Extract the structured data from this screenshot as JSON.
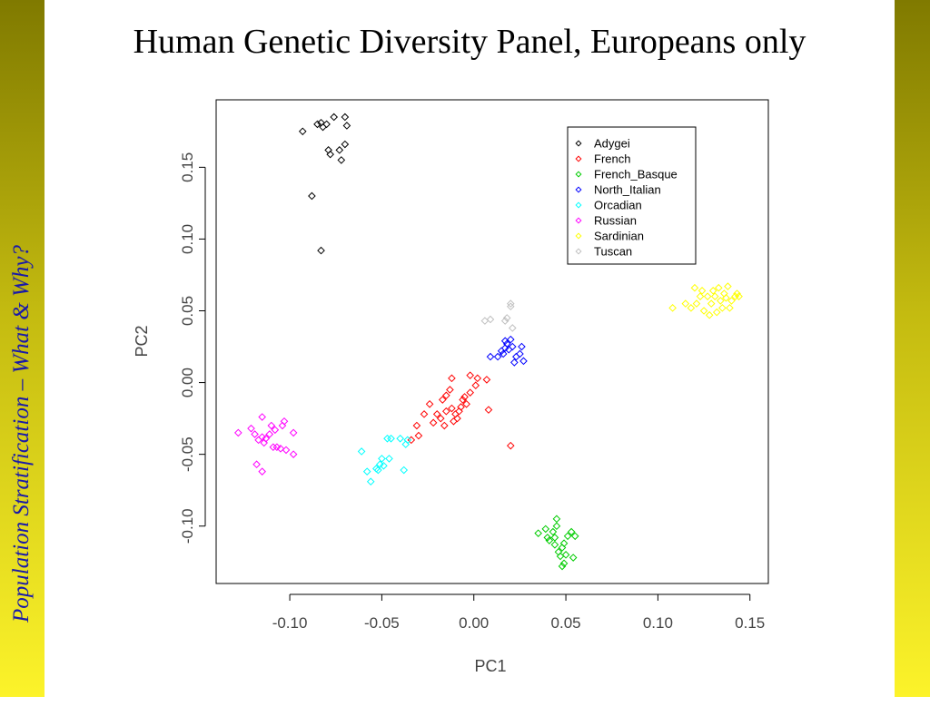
{
  "slide": {
    "title": "Human Genetic Diversity Panel, Europeans only",
    "side_caption": "Population Stratification – What & Why?"
  },
  "chart_data": {
    "type": "scatter",
    "title": "",
    "xlabel": "PC1",
    "ylabel": "PC2",
    "xlim": [
      -0.14,
      0.16
    ],
    "ylim": [
      -0.14,
      0.197
    ],
    "xticks": [
      -0.1,
      -0.05,
      0.0,
      0.05,
      0.1,
      0.15
    ],
    "xtick_labels": [
      "-0.10",
      "-0.05",
      "0.00",
      "0.05",
      "0.10",
      "0.15"
    ],
    "yticks": [
      -0.1,
      -0.05,
      0.0,
      0.05,
      0.1,
      0.15
    ],
    "ytick_labels": [
      "-0.10",
      "-0.05",
      "0.00",
      "0.05",
      "0.10",
      "0.15"
    ],
    "marker": "diamond",
    "grid": false,
    "legend_position": "top-right",
    "series": [
      {
        "name": "Adygei",
        "color": "#000000",
        "points": [
          [
            -0.093,
            0.175
          ],
          [
            -0.085,
            0.18
          ],
          [
            -0.083,
            0.181
          ],
          [
            -0.082,
            0.178
          ],
          [
            -0.08,
            0.18
          ],
          [
            -0.076,
            0.185
          ],
          [
            -0.07,
            0.185
          ],
          [
            -0.069,
            0.179
          ],
          [
            -0.079,
            0.162
          ],
          [
            -0.078,
            0.159
          ],
          [
            -0.073,
            0.162
          ],
          [
            -0.07,
            0.166
          ],
          [
            -0.072,
            0.155
          ],
          [
            -0.088,
            0.13
          ],
          [
            -0.083,
            0.092
          ]
        ]
      },
      {
        "name": "French",
        "color": "#ff0000",
        "points": [
          [
            -0.034,
            -0.04
          ],
          [
            -0.03,
            -0.037
          ],
          [
            -0.031,
            -0.03
          ],
          [
            -0.027,
            -0.022
          ],
          [
            -0.024,
            -0.015
          ],
          [
            -0.022,
            -0.028
          ],
          [
            -0.02,
            -0.022
          ],
          [
            -0.018,
            -0.025
          ],
          [
            -0.016,
            -0.03
          ],
          [
            -0.015,
            -0.02
          ],
          [
            -0.017,
            -0.012
          ],
          [
            -0.015,
            -0.009
          ],
          [
            -0.013,
            -0.005
          ],
          [
            -0.012,
            -0.018
          ],
          [
            -0.011,
            -0.027
          ],
          [
            -0.01,
            -0.022
          ],
          [
            -0.008,
            -0.02
          ],
          [
            -0.007,
            -0.017
          ],
          [
            -0.006,
            -0.012
          ],
          [
            -0.005,
            -0.01
          ],
          [
            -0.004,
            -0.015
          ],
          [
            -0.012,
            0.003
          ],
          [
            -0.002,
            -0.007
          ],
          [
            -0.002,
            0.005
          ],
          [
            0.001,
            -0.002
          ],
          [
            0.002,
            0.003
          ],
          [
            0.007,
            0.002
          ],
          [
            0.008,
            -0.019
          ],
          [
            0.02,
            -0.044
          ],
          [
            -0.009,
            -0.025
          ]
        ]
      },
      {
        "name": "French_Basque",
        "color": "#00cc00",
        "points": [
          [
            0.035,
            -0.105
          ],
          [
            0.039,
            -0.102
          ],
          [
            0.04,
            -0.108
          ],
          [
            0.041,
            -0.11
          ],
          [
            0.043,
            -0.104
          ],
          [
            0.044,
            -0.113
          ],
          [
            0.045,
            -0.1
          ],
          [
            0.045,
            -0.095
          ],
          [
            0.046,
            -0.118
          ],
          [
            0.047,
            -0.121
          ],
          [
            0.048,
            -0.115
          ],
          [
            0.049,
            -0.112
          ],
          [
            0.05,
            -0.12
          ],
          [
            0.048,
            -0.128
          ],
          [
            0.049,
            -0.126
          ],
          [
            0.051,
            -0.107
          ],
          [
            0.053,
            -0.104
          ],
          [
            0.054,
            -0.122
          ],
          [
            0.055,
            -0.107
          ],
          [
            0.044,
            -0.108
          ]
        ]
      },
      {
        "name": "North_Italian",
        "color": "#0000ff",
        "points": [
          [
            0.009,
            0.018
          ],
          [
            0.013,
            0.018
          ],
          [
            0.016,
            0.02
          ],
          [
            0.017,
            0.024
          ],
          [
            0.017,
            0.029
          ],
          [
            0.018,
            0.027
          ],
          [
            0.019,
            0.023
          ],
          [
            0.02,
            0.03
          ],
          [
            0.021,
            0.025
          ],
          [
            0.022,
            0.014
          ],
          [
            0.023,
            0.018
          ],
          [
            0.025,
            0.02
          ],
          [
            0.026,
            0.025
          ],
          [
            0.027,
            0.015
          ],
          [
            0.015,
            0.022
          ]
        ]
      },
      {
        "name": "Orcadian",
        "color": "#00ffff",
        "points": [
          [
            -0.061,
            -0.048
          ],
          [
            -0.058,
            -0.062
          ],
          [
            -0.056,
            -0.069
          ],
          [
            -0.053,
            -0.06
          ],
          [
            -0.052,
            -0.061
          ],
          [
            -0.051,
            -0.057
          ],
          [
            -0.05,
            -0.053
          ],
          [
            -0.049,
            -0.058
          ],
          [
            -0.047,
            -0.039
          ],
          [
            -0.046,
            -0.053
          ],
          [
            -0.045,
            -0.039
          ],
          [
            -0.04,
            -0.039
          ],
          [
            -0.038,
            -0.061
          ],
          [
            -0.037,
            -0.043
          ],
          [
            -0.036,
            -0.04
          ]
        ]
      },
      {
        "name": "Russian",
        "color": "#ff00ff",
        "points": [
          [
            -0.128,
            -0.035
          ],
          [
            -0.121,
            -0.032
          ],
          [
            -0.119,
            -0.036
          ],
          [
            -0.117,
            -0.04
          ],
          [
            -0.115,
            -0.038
          ],
          [
            -0.114,
            -0.042
          ],
          [
            -0.113,
            -0.039
          ],
          [
            -0.111,
            -0.036
          ],
          [
            -0.11,
            -0.03
          ],
          [
            -0.109,
            -0.045
          ],
          [
            -0.108,
            -0.033
          ],
          [
            -0.107,
            -0.045
          ],
          [
            -0.105,
            -0.046
          ],
          [
            -0.104,
            -0.03
          ],
          [
            -0.103,
            -0.027
          ],
          [
            -0.102,
            -0.047
          ],
          [
            -0.098,
            -0.05
          ],
          [
            -0.098,
            -0.035
          ],
          [
            -0.118,
            -0.057
          ],
          [
            -0.115,
            -0.062
          ],
          [
            -0.115,
            -0.024
          ]
        ]
      },
      {
        "name": "Sardinian",
        "color": "#ffff00",
        "points": [
          [
            0.108,
            0.052
          ],
          [
            0.115,
            0.055
          ],
          [
            0.118,
            0.052
          ],
          [
            0.12,
            0.066
          ],
          [
            0.121,
            0.055
          ],
          [
            0.123,
            0.06
          ],
          [
            0.124,
            0.064
          ],
          [
            0.125,
            0.05
          ],
          [
            0.127,
            0.06
          ],
          [
            0.128,
            0.047
          ],
          [
            0.129,
            0.055
          ],
          [
            0.13,
            0.064
          ],
          [
            0.131,
            0.06
          ],
          [
            0.132,
            0.049
          ],
          [
            0.133,
            0.066
          ],
          [
            0.134,
            0.057
          ],
          [
            0.135,
            0.052
          ],
          [
            0.136,
            0.062
          ],
          [
            0.137,
            0.059
          ],
          [
            0.138,
            0.067
          ],
          [
            0.139,
            0.052
          ],
          [
            0.14,
            0.057
          ],
          [
            0.142,
            0.06
          ],
          [
            0.143,
            0.062
          ],
          [
            0.144,
            0.06
          ]
        ]
      },
      {
        "name": "Tuscan",
        "color": "#c0c0c0",
        "points": [
          [
            0.006,
            0.043
          ],
          [
            0.009,
            0.044
          ],
          [
            0.017,
            0.043
          ],
          [
            0.018,
            0.045
          ],
          [
            0.02,
            0.055
          ],
          [
            0.02,
            0.053
          ],
          [
            0.021,
            0.038
          ]
        ]
      }
    ]
  }
}
